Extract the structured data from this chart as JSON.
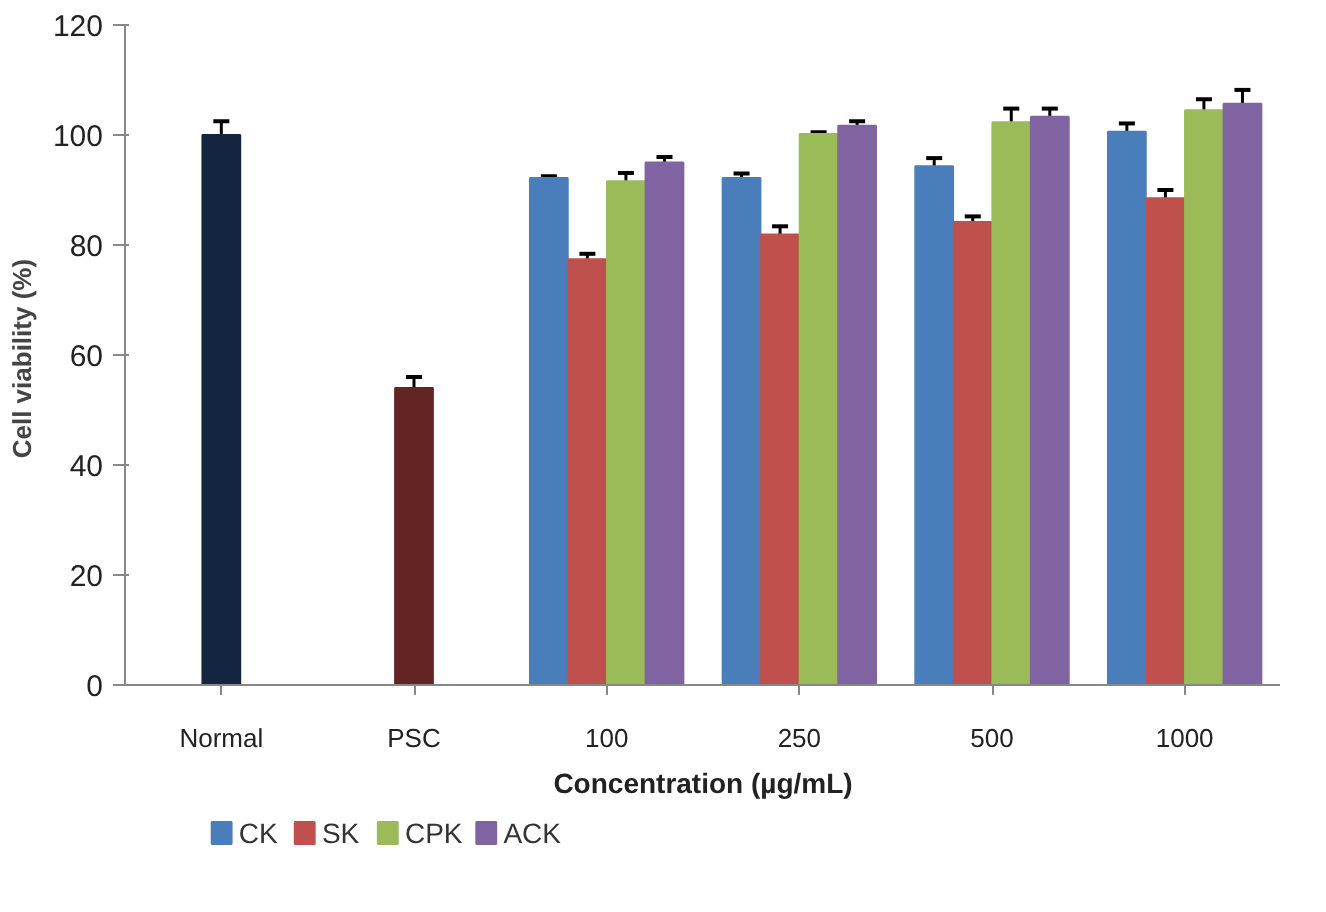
{
  "chart_data": {
    "type": "bar",
    "ylabel": "Cell viability  (%)",
    "xlabel": "Concentration (µg/mL)",
    "categories": [
      "Normal",
      "PSC",
      "100",
      "250",
      "500",
      "1000"
    ],
    "series": [
      {
        "colors": [
          "#14263f",
          "#632523",
          null,
          null,
          null,
          null
        ],
        "values": [
          100,
          54,
          null,
          null,
          null,
          null
        ],
        "errors": [
          2.5,
          2,
          null,
          null,
          null,
          null
        ]
      },
      {
        "name": "CK",
        "color": "#4a7ebb",
        "values": [
          null,
          null,
          92.2,
          92.2,
          94.3,
          100.6
        ],
        "errors": [
          null,
          null,
          0.3,
          0.8,
          1.5,
          1.5
        ]
      },
      {
        "name": "SK",
        "color": "#c0504d",
        "values": [
          null,
          null,
          77.4,
          81.9,
          84.2,
          88.5
        ],
        "errors": [
          null,
          null,
          1,
          1.5,
          1,
          1.5
        ]
      },
      {
        "name": "CPK",
        "color": "#9bbb59",
        "values": [
          null,
          null,
          91.6,
          100.2,
          102.3,
          104.5
        ],
        "errors": [
          null,
          null,
          1.5,
          0.3,
          2.5,
          2
        ]
      },
      {
        "name": "ACK",
        "color": "#8064a2",
        "values": [
          null,
          null,
          95.0,
          101.7,
          103.3,
          105.7
        ],
        "errors": [
          null,
          null,
          1,
          0.8,
          1.5,
          2.5
        ]
      }
    ],
    "ylim": [
      0,
      120
    ],
    "yticks": [
      0,
      20,
      40,
      60,
      80,
      100,
      120
    ],
    "grid": false,
    "legend": "bottom left"
  }
}
